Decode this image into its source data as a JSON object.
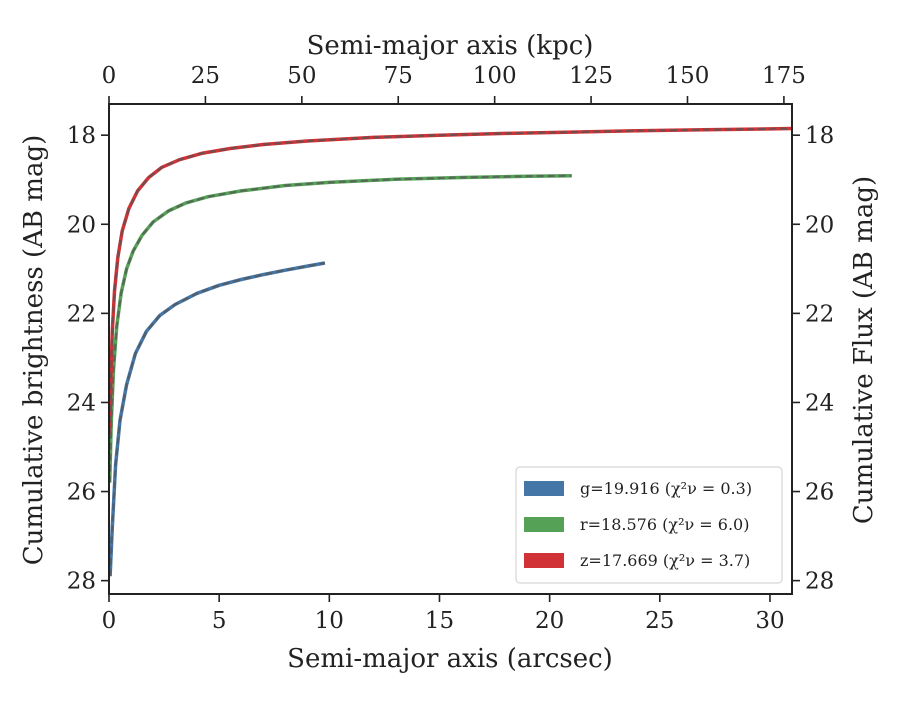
{
  "chart_data": {
    "type": "line",
    "title": "",
    "xlabel": "Semi-major axis (arcsec)",
    "ylabel": "Cumulative brightness (AB mag)",
    "x2label": "Semi-major axis (kpc)",
    "y2label": "Cumulative Flux (AB mag)",
    "xlim": [
      0,
      31
    ],
    "ylim": [
      28.3,
      17.3
    ],
    "y_inverted": true,
    "x2lim": [
      0,
      177.1
    ],
    "xticks": [
      0,
      5,
      10,
      15,
      20,
      25,
      30
    ],
    "x2ticks": [
      0,
      25,
      50,
      75,
      100,
      125,
      150,
      175
    ],
    "yticks": [
      18,
      20,
      22,
      24,
      26,
      28
    ],
    "grid": false,
    "legend_position": "lower-right",
    "series": [
      {
        "name": "g=19.916",
        "chi2_label": "(χ²ν = 0.3)",
        "color": "#4477a8",
        "x": [
          0.05,
          0.15,
          0.3,
          0.5,
          0.8,
          1.2,
          1.7,
          2.3,
          3,
          4,
          5,
          6,
          7,
          8,
          9,
          9.8
        ],
        "y": [
          27.9,
          26.8,
          25.4,
          24.4,
          23.6,
          22.9,
          22.4,
          22.05,
          21.8,
          21.55,
          21.37,
          21.24,
          21.13,
          21.03,
          20.94,
          20.87
        ]
      },
      {
        "name": "r=18.576",
        "chi2_label": "(χ²ν = 6.0)",
        "color": "#55a257",
        "x": [
          0.03,
          0.1,
          0.2,
          0.35,
          0.55,
          0.8,
          1.1,
          1.5,
          2,
          2.7,
          3.5,
          4.5,
          6,
          8,
          10,
          13,
          16,
          19,
          21
        ],
        "y": [
          25.8,
          24.5,
          23.3,
          22.3,
          21.55,
          21.0,
          20.6,
          20.25,
          19.95,
          19.7,
          19.52,
          19.38,
          19.25,
          19.13,
          19.06,
          18.99,
          18.95,
          18.92,
          18.91
        ]
      },
      {
        "name": "z=17.669",
        "chi2_label": "(χ²ν = 3.7)",
        "color": "#d13236",
        "x": [
          0.03,
          0.08,
          0.15,
          0.25,
          0.4,
          0.6,
          0.9,
          1.3,
          1.8,
          2.4,
          3.2,
          4.2,
          5.5,
          7,
          9,
          12,
          15,
          18,
          21,
          24,
          27,
          30,
          31
        ],
        "y": [
          24.7,
          23.5,
          22.4,
          21.5,
          20.75,
          20.15,
          19.65,
          19.25,
          18.95,
          18.72,
          18.55,
          18.41,
          18.3,
          18.21,
          18.13,
          18.05,
          18.0,
          17.96,
          17.93,
          17.9,
          17.88,
          17.86,
          17.85
        ]
      }
    ]
  }
}
